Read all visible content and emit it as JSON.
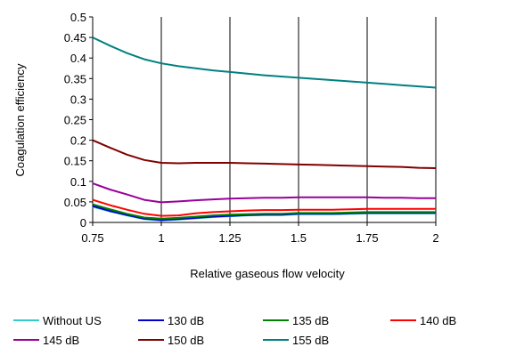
{
  "chart_data": {
    "type": "line",
    "title": "",
    "xlabel": "Relative gaseous flow velocity",
    "ylabel": "Coagulation efficiency",
    "xlim": [
      0.75,
      2
    ],
    "ylim": [
      0,
      0.5
    ],
    "x_ticks": [
      "0.75",
      "1",
      "1.25",
      "1.5",
      "1.75",
      "2"
    ],
    "y_ticks": [
      "0",
      "0.05",
      "0.1",
      "0.15",
      "0.2",
      "0.25",
      "0.3",
      "0.35",
      "0.4",
      "0.45",
      "0.5"
    ],
    "grid": "vertical",
    "legend_position": "bottom",
    "x": [
      0.75,
      0.8125,
      0.875,
      0.9375,
      1.0,
      1.0625,
      1.125,
      1.1875,
      1.25,
      1.3125,
      1.375,
      1.4375,
      1.5,
      1.5625,
      1.625,
      1.6875,
      1.75,
      1.8125,
      1.875,
      1.9375,
      2.0
    ],
    "series": [
      {
        "name": "Without US",
        "color": "#33CCCC",
        "values": [
          0.038,
          0.027,
          0.017,
          0.008,
          0.005,
          0.007,
          0.01,
          0.013,
          0.015,
          0.017,
          0.018,
          0.018,
          0.02,
          0.02,
          0.02,
          0.021,
          0.022,
          0.022,
          0.022,
          0.022,
          0.022
        ]
      },
      {
        "name": "130 dB",
        "color": "#0000CC",
        "values": [
          0.04,
          0.028,
          0.018,
          0.009,
          0.006,
          0.008,
          0.011,
          0.014,
          0.016,
          0.018,
          0.019,
          0.019,
          0.021,
          0.021,
          0.021,
          0.022,
          0.023,
          0.023,
          0.023,
          0.023,
          0.023
        ]
      },
      {
        "name": "135 dB",
        "color": "#008000",
        "values": [
          0.044,
          0.032,
          0.021,
          0.012,
          0.009,
          0.011,
          0.014,
          0.017,
          0.019,
          0.02,
          0.021,
          0.021,
          0.023,
          0.023,
          0.023,
          0.024,
          0.025,
          0.025,
          0.025,
          0.025,
          0.025
        ]
      },
      {
        "name": "140 dB",
        "color": "#FF0000",
        "values": [
          0.055,
          0.042,
          0.031,
          0.021,
          0.016,
          0.017,
          0.022,
          0.025,
          0.027,
          0.029,
          0.03,
          0.03,
          0.031,
          0.031,
          0.031,
          0.032,
          0.033,
          0.033,
          0.033,
          0.033,
          0.033
        ]
      },
      {
        "name": "145 dB",
        "color": "#990099",
        "values": [
          0.095,
          0.08,
          0.068,
          0.055,
          0.049,
          0.051,
          0.054,
          0.056,
          0.058,
          0.059,
          0.06,
          0.06,
          0.061,
          0.061,
          0.061,
          0.061,
          0.061,
          0.06,
          0.06,
          0.059,
          0.059
        ]
      },
      {
        "name": "150 dB",
        "color": "#800000",
        "values": [
          0.2,
          0.182,
          0.165,
          0.152,
          0.145,
          0.144,
          0.145,
          0.145,
          0.145,
          0.144,
          0.143,
          0.142,
          0.141,
          0.14,
          0.139,
          0.138,
          0.137,
          0.136,
          0.135,
          0.133,
          0.132
        ]
      },
      {
        "name": "155 dB",
        "color": "#008080",
        "values": [
          0.45,
          0.43,
          0.412,
          0.397,
          0.387,
          0.38,
          0.375,
          0.37,
          0.366,
          0.362,
          0.358,
          0.355,
          0.352,
          0.349,
          0.346,
          0.343,
          0.34,
          0.337,
          0.334,
          0.331,
          0.328
        ]
      }
    ]
  }
}
